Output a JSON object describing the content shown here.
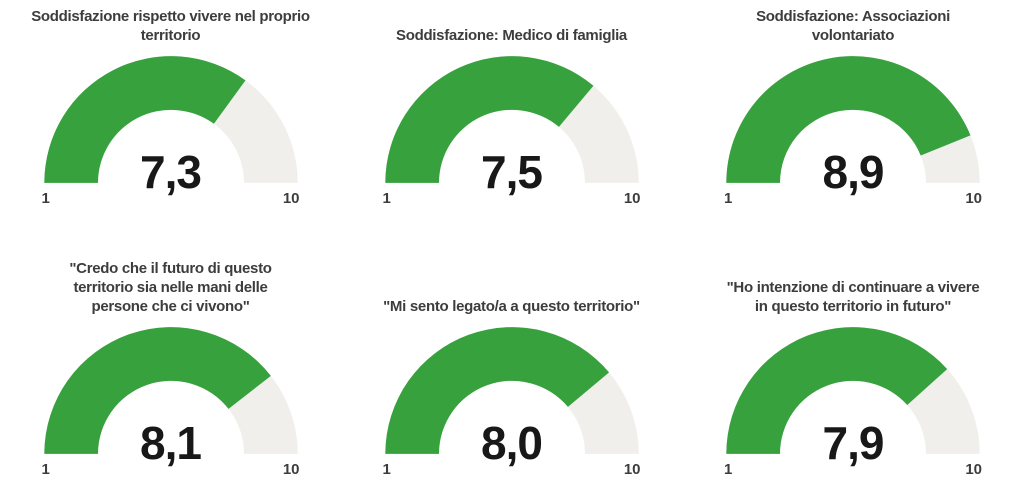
{
  "page": {
    "background": "#ffffff"
  },
  "colors": {
    "gauge_fill": "#37a13e",
    "gauge_track": "#f0efec",
    "title_text": "#3d3d3d",
    "value_text": "#181818"
  },
  "chart_data": [
    {
      "type": "gauge",
      "title": "Soddisfazione rispetto vivere nel proprio\nterritorio",
      "value": 7.3,
      "value_display": "7,3",
      "min": 1,
      "max": 10,
      "min_label": "1",
      "max_label": "10"
    },
    {
      "type": "gauge",
      "title": "Soddisfazione: Medico di famiglia",
      "value": 7.5,
      "value_display": "7,5",
      "min": 1,
      "max": 10,
      "min_label": "1",
      "max_label": "10"
    },
    {
      "type": "gauge",
      "title": "Soddisfazione: Associazioni\nvolontariato",
      "value": 8.9,
      "value_display": "8,9",
      "min": 1,
      "max": 10,
      "min_label": "1",
      "max_label": "10"
    },
    {
      "type": "gauge",
      "title": "\"Credo che il futuro di questo\nterritorio sia nelle mani delle\npersone che ci vivono\"",
      "value": 8.1,
      "value_display": "8,1",
      "min": 1,
      "max": 10,
      "min_label": "1",
      "max_label": "10"
    },
    {
      "type": "gauge",
      "title": "\"Mi sento legato/a a questo territorio\"",
      "value": 8.0,
      "value_display": "8,0",
      "min": 1,
      "max": 10,
      "min_label": "1",
      "max_label": "10"
    },
    {
      "type": "gauge",
      "title": "\"Ho intenzione di continuare a vivere\nin questo territorio in futuro\"",
      "value": 7.9,
      "value_display": "7,9",
      "min": 1,
      "max": 10,
      "min_label": "1",
      "max_label": "10"
    }
  ]
}
